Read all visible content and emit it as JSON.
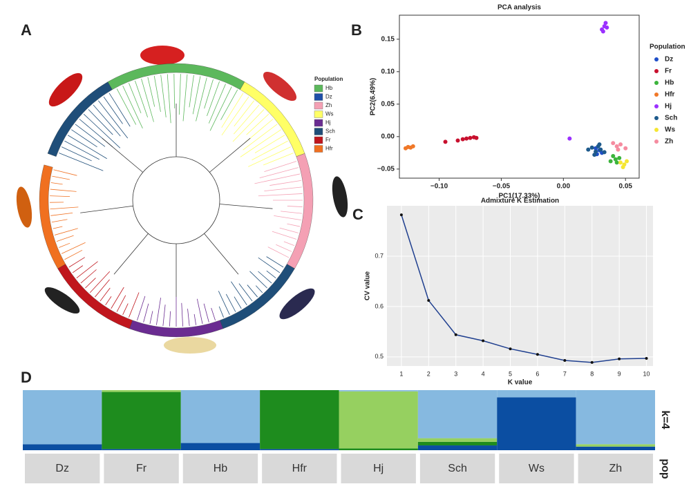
{
  "chart_data": [
    {
      "type": "tree",
      "panel": "A",
      "legend_title": "Population",
      "legend": [
        {
          "name": "Hb",
          "color": "#5cb85c"
        },
        {
          "name": "Dz",
          "color": "#1f4fa8"
        },
        {
          "name": "Zh",
          "color": "#f4a0b4"
        },
        {
          "name": "Ws",
          "color": "#ffff66"
        },
        {
          "name": "Hj",
          "color": "#6a2c91"
        },
        {
          "name": "Sch",
          "color": "#1f4e79"
        },
        {
          "name": "Fr",
          "color": "#c0161d"
        },
        {
          "name": "Hfr",
          "color": "#f07020"
        }
      ]
    },
    {
      "type": "scatter",
      "panel": "B",
      "title": "PCA analysis",
      "xlabel": "PC1(17.33%)",
      "ylabel": "PC2(6.49%)",
      "legend_title": "Population",
      "xlim": [
        -0.132,
        0.061
      ],
      "ylim": [
        -0.064,
        0.187
      ],
      "xticks": [
        {
          "value": -0.1,
          "label": "−0.10"
        },
        {
          "value": -0.05,
          "label": "−0.05"
        },
        {
          "value": 0,
          "label": "0.00"
        },
        {
          "value": 0.05,
          "label": "0.05"
        }
      ],
      "yticks": [
        {
          "value": -0.05,
          "label": "−0.05"
        },
        {
          "value": 0,
          "label": "0.00"
        },
        {
          "value": 0.05,
          "label": "0.05"
        },
        {
          "value": 0.1,
          "label": "0.10"
        },
        {
          "value": 0.15,
          "label": "0.15"
        }
      ],
      "series": [
        {
          "name": "Dz",
          "color": "#1f4fc8",
          "x": [
            0.026,
            0.029,
            0.031,
            0.027
          ],
          "y": [
            -0.018,
            -0.021,
            -0.025,
            -0.027
          ]
        },
        {
          "name": "Fr",
          "color": "#c8102e",
          "x": [
            -0.095,
            -0.085,
            -0.081,
            -0.078,
            -0.075,
            -0.072,
            -0.07
          ],
          "y": [
            -0.008,
            -0.006,
            -0.004,
            -0.003,
            -0.002,
            -0.001,
            -0.002
          ]
        },
        {
          "name": "Hb",
          "color": "#3cb43c",
          "x": [
            0.04,
            0.042,
            0.038,
            0.045,
            0.043
          ],
          "y": [
            -0.03,
            -0.035,
            -0.038,
            -0.033,
            -0.04
          ]
        },
        {
          "name": "Hfr",
          "color": "#f07828",
          "x": [
            -0.127,
            -0.125,
            -0.123,
            -0.121
          ],
          "y": [
            -0.018,
            -0.016,
            -0.017,
            -0.015
          ]
        },
        {
          "name": "Hj",
          "color": "#9b30ff",
          "x": [
            0.005,
            0.031,
            0.033,
            0.034,
            0.032,
            0.035
          ],
          "y": [
            -0.003,
            0.165,
            0.17,
            0.175,
            0.162,
            0.168
          ]
        },
        {
          "name": "Sch",
          "color": "#1e5a8c",
          "x": [
            0.02,
            0.023,
            0.026,
            0.028,
            0.03,
            0.033,
            0.025,
            0.029
          ],
          "y": [
            -0.02,
            -0.017,
            -0.023,
            -0.015,
            -0.02,
            -0.024,
            -0.028,
            -0.012
          ]
        },
        {
          "name": "Ws",
          "color": "#f5e632",
          "x": [
            0.046,
            0.049,
            0.051,
            0.048
          ],
          "y": [
            -0.04,
            -0.043,
            -0.038,
            -0.047
          ]
        },
        {
          "name": "Zh",
          "color": "#f58ca0",
          "x": [
            0.04,
            0.043,
            0.046,
            0.05,
            0.044
          ],
          "y": [
            -0.01,
            -0.015,
            -0.012,
            -0.018,
            -0.02
          ]
        }
      ]
    },
    {
      "type": "line",
      "panel": "C",
      "title": "Admixture K Estimation",
      "xlabel": "K value",
      "ylabel": "CV value",
      "color": "#1f3f8f",
      "x": [
        1,
        2,
        3,
        4,
        5,
        6,
        7,
        8,
        9,
        10
      ],
      "values": [
        0.782,
        0.612,
        0.544,
        0.532,
        0.516,
        0.505,
        0.493,
        0.489,
        0.496,
        0.497
      ],
      "xlim": [
        0.47,
        10.24
      ],
      "ylim": [
        0.482,
        0.8
      ],
      "xticks": [
        1,
        2,
        3,
        4,
        5,
        6,
        7,
        8,
        9,
        10
      ],
      "yticks": [
        0.5,
        0.6,
        0.7
      ],
      "grid": true
    },
    {
      "type": "stacked",
      "panel": "D",
      "label": "k=4",
      "category_axis_label": "pop",
      "ylim": [
        0,
        1
      ],
      "categories": [
        "Dz",
        "Fr",
        "Hb",
        "Hfr",
        "Hj",
        "Sch",
        "Ws",
        "Zh"
      ],
      "series": [
        {
          "color": "#0b4ea2",
          "values": [
            0.1,
            0.02,
            0.12,
            0.02,
            0,
            0.08,
            0.88,
            0.06
          ]
        },
        {
          "color": "#1e8c1e",
          "values": [
            0,
            0.95,
            0,
            0.98,
            0.03,
            0.06,
            0,
            0
          ]
        },
        {
          "color": "#96d060",
          "values": [
            0,
            0.03,
            0,
            0,
            0.95,
            0.06,
            0,
            0.04
          ]
        },
        {
          "color": "#86b9e0",
          "values": [
            0.9,
            0,
            0.88,
            0,
            0.02,
            0.8,
            0.12,
            0.9
          ]
        }
      ]
    }
  ]
}
